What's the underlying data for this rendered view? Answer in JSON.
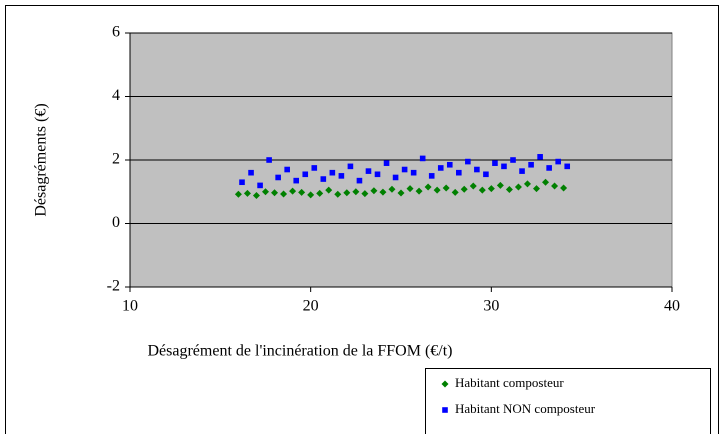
{
  "chart_data": {
    "type": "scatter",
    "x_label": "Désagrément de l'incinération de la FFOM (€/t)",
    "y_label": "Désagréments (€)",
    "xlim": [
      10,
      40
    ],
    "xticks": [
      10,
      20,
      30,
      40
    ],
    "ylim": [
      -2,
      6
    ],
    "yticks": [
      -2,
      0,
      2,
      4,
      6
    ],
    "grid": true,
    "legend": "bottom-right",
    "background": "#c0c0c0",
    "series": [
      {
        "name": "Habitant composteur",
        "color": "#008000",
        "marker": "diamond",
        "x": [
          16,
          16.5,
          17,
          17.5,
          18,
          18.5,
          19,
          19.5,
          20,
          20.5,
          21,
          21.5,
          22,
          22.5,
          23,
          23.5,
          24,
          24.5,
          25,
          25.5,
          26,
          26.5,
          27,
          27.5,
          28,
          28.5,
          29,
          29.5,
          30,
          30.5,
          31,
          31.5,
          32,
          32.5,
          33,
          33.5,
          34
        ],
        "values": [
          0.92,
          0.95,
          0.88,
          1.0,
          0.97,
          0.93,
          1.02,
          0.98,
          0.9,
          0.95,
          1.05,
          0.92,
          0.97,
          1.0,
          0.94,
          1.03,
          0.99,
          1.08,
          0.96,
          1.1,
          1.02,
          1.15,
          1.05,
          1.12,
          0.98,
          1.08,
          1.18,
          1.05,
          1.1,
          1.2,
          1.07,
          1.15,
          1.25,
          1.1,
          1.3,
          1.18,
          1.12
        ]
      },
      {
        "name": "Habitant NON composteur",
        "color": "#0000ff",
        "marker": "square",
        "x": [
          16.2,
          16.7,
          17.2,
          17.7,
          18.2,
          18.7,
          19.2,
          19.7,
          20.2,
          20.7,
          21.2,
          21.7,
          22.2,
          22.7,
          23.2,
          23.7,
          24.2,
          24.7,
          25.2,
          25.7,
          26.2,
          26.7,
          27.2,
          27.7,
          28.2,
          28.7,
          29.2,
          29.7,
          30.2,
          30.7,
          31.2,
          31.7,
          32.2,
          32.7,
          33.2,
          33.7,
          34.2
        ],
        "values": [
          1.3,
          1.6,
          1.2,
          2.0,
          1.45,
          1.7,
          1.35,
          1.55,
          1.75,
          1.4,
          1.6,
          1.5,
          1.8,
          1.35,
          1.65,
          1.55,
          1.9,
          1.45,
          1.7,
          1.6,
          2.05,
          1.5,
          1.75,
          1.85,
          1.6,
          1.95,
          1.7,
          1.55,
          1.9,
          1.8,
          2.0,
          1.65,
          1.85,
          2.1,
          1.75,
          1.95,
          1.8
        ]
      }
    ]
  }
}
